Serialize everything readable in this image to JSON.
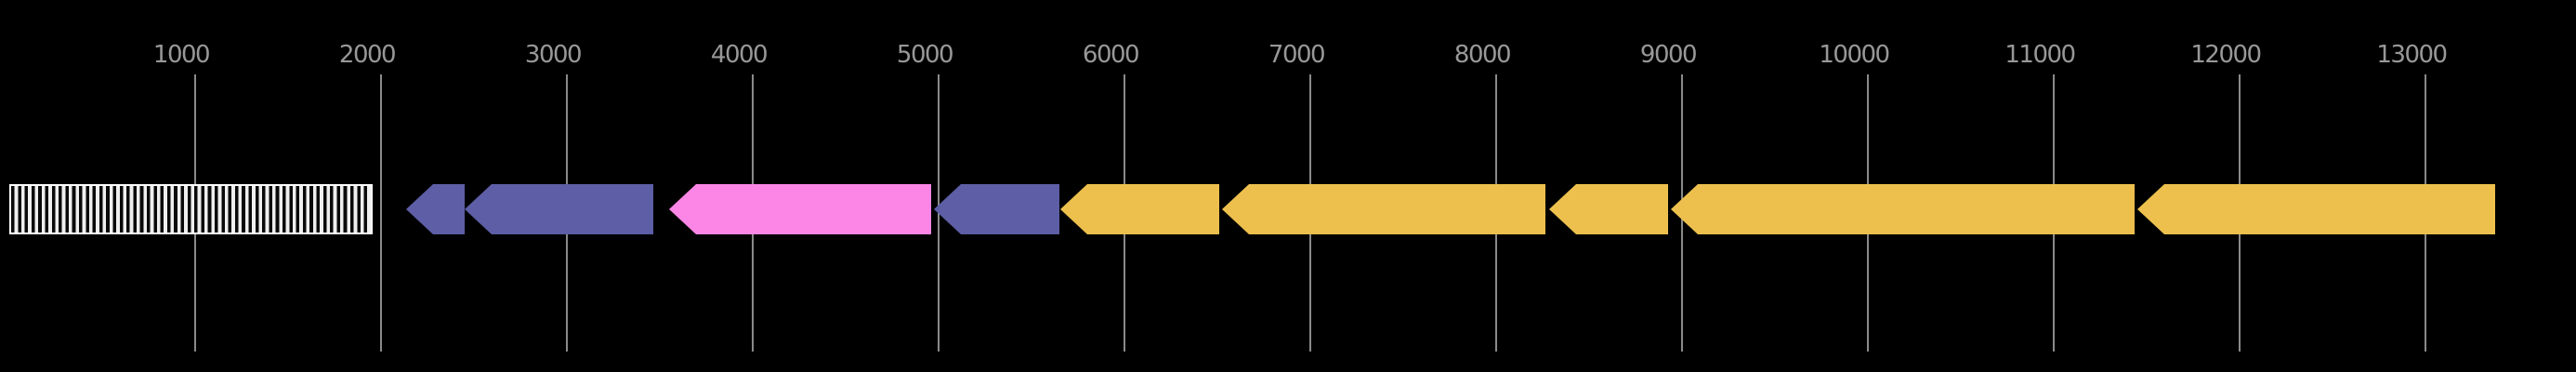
{
  "figure": {
    "description": "Genome feature map on black background: ruler axis with gridlines above a single track of a hatched source region followed by nine reverse-strand (left-pointing) gene arrows",
    "background_color": "#000000"
  },
  "axis": {
    "unit": "bp",
    "tick_values": [
      1000,
      2000,
      3000,
      4000,
      5000,
      6000,
      7000,
      8000,
      9000,
      10000,
      11000,
      12000,
      13000
    ],
    "tick_labels": [
      "1000",
      "2000",
      "3000",
      "4000",
      "5000",
      "6000",
      "7000",
      "8000",
      "9000",
      "10000",
      "11000",
      "12000",
      "13000"
    ],
    "label_color": "#989898",
    "gridline_color": "#8a8a8a",
    "range_start": 0,
    "range_end": 13810
  },
  "colors": {
    "purple": "#5d5ea6",
    "pink": "#fb86e5",
    "yellow": "#edc04e",
    "region_fill": "#efefef",
    "region_stripe": "#0a0a0a",
    "region_border": "#ffffff"
  },
  "track": {
    "features": [
      {
        "name": "hatched-region",
        "shape": "striped-box",
        "strand": "none",
        "start": 0,
        "end": 1955
      },
      {
        "name": "gene-arrow-purple-1",
        "shape": "arrow",
        "strand": "-",
        "start": 2135,
        "end": 2450,
        "color_key": "purple"
      },
      {
        "name": "gene-arrow-purple-2",
        "shape": "arrow",
        "strand": "-",
        "start": 2450,
        "end": 3465,
        "color_key": "purple"
      },
      {
        "name": "gene-arrow-pink-1",
        "shape": "arrow",
        "strand": "-",
        "start": 3550,
        "end": 4960,
        "color_key": "pink"
      },
      {
        "name": "gene-arrow-purple-3",
        "shape": "arrow",
        "strand": "-",
        "start": 4975,
        "end": 5650,
        "color_key": "purple"
      },
      {
        "name": "gene-arrow-yellow-1",
        "shape": "arrow",
        "strand": "-",
        "start": 5655,
        "end": 6510,
        "color_key": "yellow"
      },
      {
        "name": "gene-arrow-yellow-2",
        "shape": "arrow",
        "strand": "-",
        "start": 6525,
        "end": 8265,
        "color_key": "yellow"
      },
      {
        "name": "gene-arrow-yellow-3",
        "shape": "arrow",
        "strand": "-",
        "start": 8285,
        "end": 8925,
        "color_key": "yellow"
      },
      {
        "name": "gene-arrow-yellow-4",
        "shape": "arrow",
        "strand": "-",
        "start": 8940,
        "end": 11435,
        "color_key": "yellow"
      },
      {
        "name": "gene-arrow-yellow-5",
        "shape": "arrow",
        "strand": "-",
        "start": 11450,
        "end": 13375,
        "color_key": "yellow"
      }
    ]
  }
}
